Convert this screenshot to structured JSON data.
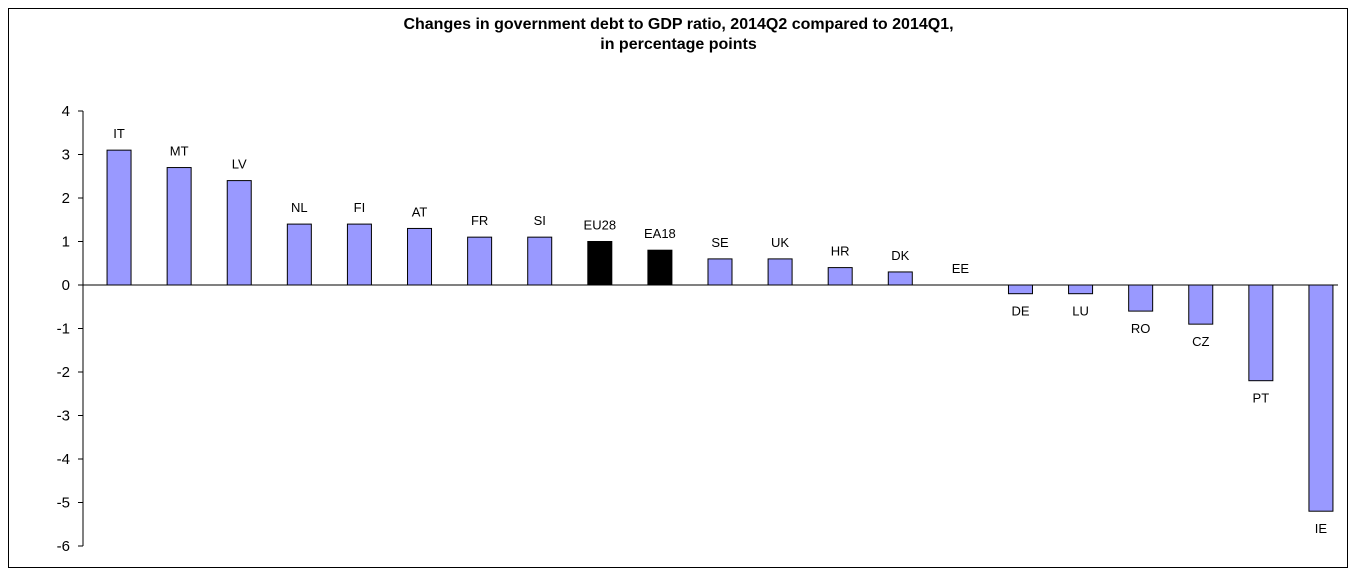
{
  "chart_data": {
    "type": "bar",
    "title_line1": "Changes in government debt to GDP ratio, 2014Q2 compared to 2014Q1,",
    "title_line2": "in percentage points",
    "xlabel": "",
    "ylabel": "",
    "ylim": [
      -6,
      4
    ],
    "yticks": [
      4,
      3,
      2,
      1,
      0,
      -1,
      -2,
      -3,
      -4,
      -5,
      -6
    ],
    "grid": false,
    "legend": "none",
    "categories": [
      "IT",
      "MT",
      "LV",
      "NL",
      "FI",
      "AT",
      "FR",
      "SI",
      "EU28",
      "EA18",
      "SE",
      "UK",
      "HR",
      "DK",
      "EE",
      "DE",
      "LU",
      "RO",
      "CZ",
      "PT",
      "IE"
    ],
    "values": [
      3.1,
      2.7,
      2.4,
      1.4,
      1.4,
      1.3,
      1.1,
      1.1,
      1.0,
      0.8,
      0.6,
      0.6,
      0.4,
      0.3,
      0.0,
      -0.2,
      -0.2,
      -0.6,
      -0.9,
      -2.2,
      -5.2
    ],
    "highlight": [
      "EU28",
      "EA18"
    ],
    "colors": {
      "bar": "#9999ff",
      "highlight_bar": "#000000",
      "bar_stroke": "#000000"
    }
  }
}
